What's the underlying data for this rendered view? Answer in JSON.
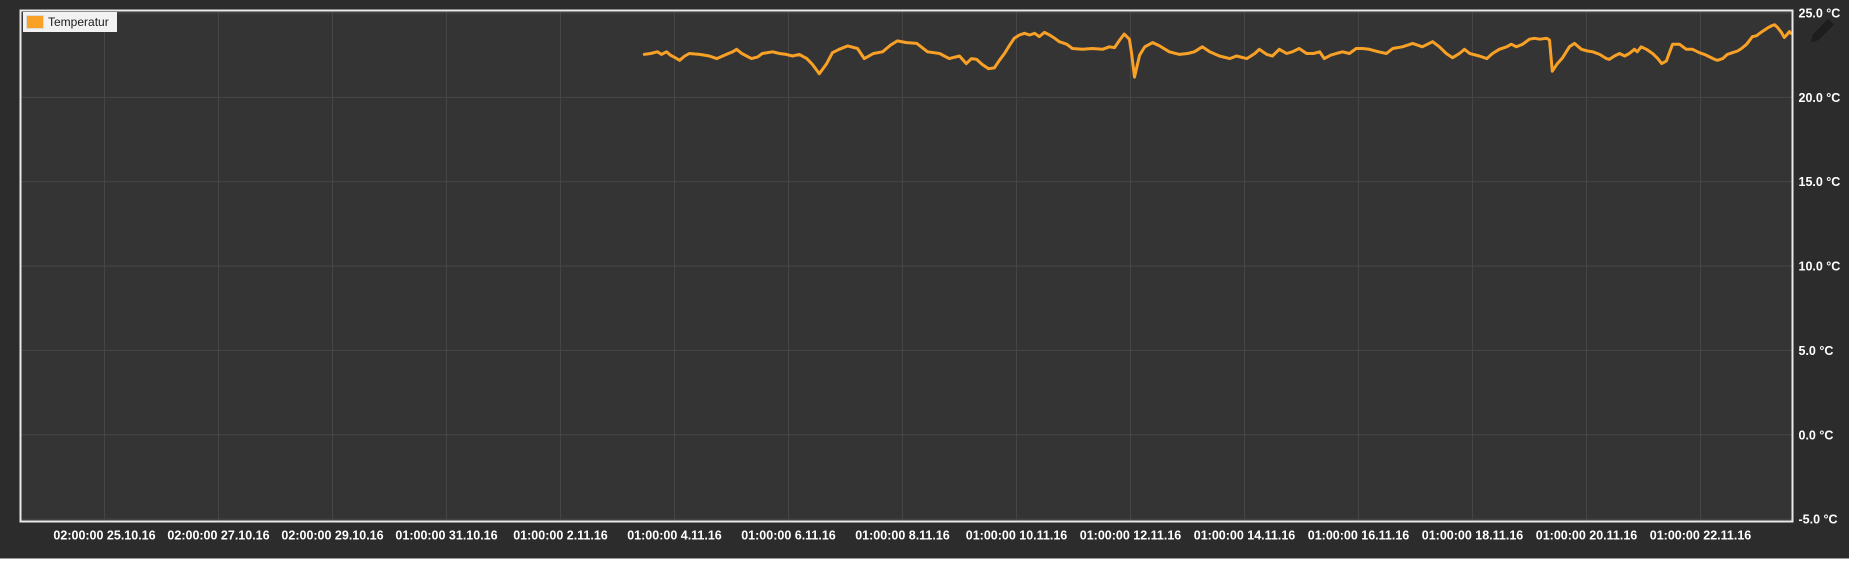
{
  "legend": {
    "label": "Temperatur",
    "swatch_color": "#F9A126"
  },
  "icons": {
    "edit_pencil": "pencil-edit"
  },
  "colors": {
    "outer_background": "#2C2C2C",
    "plot_background": "#343434",
    "gridline": "#474747",
    "plot_border": "#E9E9E9",
    "axis_label": "#FFFFFF",
    "series_line": "#F9A126",
    "legend_background": "#F2F2F2",
    "legend_text": "#1B1B1B",
    "pencil_icon": "#1D1D1D",
    "footer_background": "#FFFFFF"
  },
  "chart_data": {
    "type": "line",
    "title": "",
    "grid": true,
    "legend_position": "top-left",
    "x_axis": {
      "tick_days": [
        0,
        2,
        4,
        6,
        8,
        10,
        12,
        14,
        16,
        18,
        20,
        22,
        24,
        26,
        28
      ],
      "tick_labels": [
        "02:00:00 25.10.16",
        "02:00:00 27.10.16",
        "02:00:00 29.10.16",
        "01:00:00 31.10.16",
        "01:00:00 2.11.16",
        "01:00:00 4.11.16",
        "01:00:00 6.11.16",
        "01:00:00 8.11.16",
        "01:00:00 10.11.16",
        "01:00:00 12.11.16",
        "01:00:00 14.11.16",
        "01:00:00 16.11.16",
        "01:00:00 18.11.16",
        "01:00:00 20.11.16",
        "01:00:00 22.11.16"
      ],
      "range_days": [
        -1.474,
        29.614
      ]
    },
    "y_axis": {
      "side": "right",
      "unit": "°C",
      "ticks": [
        25,
        20,
        15,
        10,
        5,
        0,
        -5
      ],
      "tick_labels": [
        "25.0 °C",
        "20.0 °C",
        "15.0 °C",
        "10.0 °C",
        "5.0 °C",
        "0.0 °C",
        "-5.0 °C"
      ],
      "range": [
        -5.14,
        25.15
      ]
    },
    "series": [
      {
        "name": "Temperatur",
        "color": "#F9A126",
        "unit": "°C",
        "points": [
          [
            9.47,
            22.55
          ],
          [
            9.58,
            22.6
          ],
          [
            9.7,
            22.7
          ],
          [
            9.77,
            22.55
          ],
          [
            9.86,
            22.7
          ],
          [
            9.93,
            22.5
          ],
          [
            10.04,
            22.3
          ],
          [
            10.09,
            22.2
          ],
          [
            10.18,
            22.45
          ],
          [
            10.26,
            22.6
          ],
          [
            10.44,
            22.55
          ],
          [
            10.61,
            22.45
          ],
          [
            10.74,
            22.3
          ],
          [
            10.91,
            22.55
          ],
          [
            11.02,
            22.7
          ],
          [
            11.09,
            22.85
          ],
          [
            11.18,
            22.6
          ],
          [
            11.35,
            22.3
          ],
          [
            11.46,
            22.4
          ],
          [
            11.54,
            22.6
          ],
          [
            11.72,
            22.7
          ],
          [
            11.84,
            22.6
          ],
          [
            11.96,
            22.55
          ],
          [
            12.07,
            22.45
          ],
          [
            12.19,
            22.55
          ],
          [
            12.32,
            22.3
          ],
          [
            12.42,
            21.95
          ],
          [
            12.54,
            21.4
          ],
          [
            12.67,
            22.0
          ],
          [
            12.77,
            22.65
          ],
          [
            12.89,
            22.85
          ],
          [
            13.04,
            23.05
          ],
          [
            13.21,
            22.9
          ],
          [
            13.33,
            22.3
          ],
          [
            13.49,
            22.6
          ],
          [
            13.65,
            22.7
          ],
          [
            13.79,
            23.1
          ],
          [
            13.91,
            23.35
          ],
          [
            14.07,
            23.25
          ],
          [
            14.25,
            23.2
          ],
          [
            14.44,
            22.7
          ],
          [
            14.65,
            22.6
          ],
          [
            14.82,
            22.3
          ],
          [
            15.0,
            22.45
          ],
          [
            15.12,
            22.0
          ],
          [
            15.21,
            22.3
          ],
          [
            15.3,
            22.25
          ],
          [
            15.4,
            21.95
          ],
          [
            15.51,
            21.7
          ],
          [
            15.61,
            21.75
          ],
          [
            15.7,
            22.2
          ],
          [
            15.79,
            22.6
          ],
          [
            15.88,
            23.1
          ],
          [
            15.96,
            23.5
          ],
          [
            16.05,
            23.7
          ],
          [
            16.14,
            23.8
          ],
          [
            16.23,
            23.7
          ],
          [
            16.32,
            23.8
          ],
          [
            16.4,
            23.6
          ],
          [
            16.49,
            23.85
          ],
          [
            16.58,
            23.7
          ],
          [
            16.67,
            23.5
          ],
          [
            16.75,
            23.3
          ],
          [
            16.88,
            23.15
          ],
          [
            16.98,
            22.9
          ],
          [
            17.16,
            22.85
          ],
          [
            17.33,
            22.9
          ],
          [
            17.51,
            22.85
          ],
          [
            17.63,
            23.0
          ],
          [
            17.72,
            22.95
          ],
          [
            17.81,
            23.4
          ],
          [
            17.89,
            23.75
          ],
          [
            17.98,
            23.45
          ],
          [
            18.02,
            22.6
          ],
          [
            18.07,
            21.2
          ],
          [
            18.16,
            22.5
          ],
          [
            18.25,
            23.0
          ],
          [
            18.39,
            23.25
          ],
          [
            18.51,
            23.05
          ],
          [
            18.68,
            22.7
          ],
          [
            18.86,
            22.55
          ],
          [
            19.0,
            22.6
          ],
          [
            19.12,
            22.7
          ],
          [
            19.26,
            23.0
          ],
          [
            19.39,
            22.7
          ],
          [
            19.56,
            22.45
          ],
          [
            19.74,
            22.3
          ],
          [
            19.86,
            22.45
          ],
          [
            20.04,
            22.3
          ],
          [
            20.18,
            22.6
          ],
          [
            20.26,
            22.85
          ],
          [
            20.39,
            22.55
          ],
          [
            20.49,
            22.45
          ],
          [
            20.61,
            22.85
          ],
          [
            20.74,
            22.6
          ],
          [
            20.84,
            22.7
          ],
          [
            20.96,
            22.9
          ],
          [
            21.09,
            22.6
          ],
          [
            21.21,
            22.6
          ],
          [
            21.32,
            22.7
          ],
          [
            21.4,
            22.3
          ],
          [
            21.51,
            22.5
          ],
          [
            21.61,
            22.6
          ],
          [
            21.72,
            22.7
          ],
          [
            21.84,
            22.6
          ],
          [
            21.96,
            22.9
          ],
          [
            22.07,
            22.9
          ],
          [
            22.19,
            22.85
          ],
          [
            22.35,
            22.7
          ],
          [
            22.49,
            22.6
          ],
          [
            22.6,
            22.9
          ],
          [
            22.77,
            23.0
          ],
          [
            22.95,
            23.2
          ],
          [
            23.12,
            23.0
          ],
          [
            23.3,
            23.3
          ],
          [
            23.42,
            23.0
          ],
          [
            23.54,
            22.6
          ],
          [
            23.65,
            22.35
          ],
          [
            23.77,
            22.6
          ],
          [
            23.86,
            22.85
          ],
          [
            23.95,
            22.6
          ],
          [
            24.12,
            22.45
          ],
          [
            24.25,
            22.3
          ],
          [
            24.35,
            22.6
          ],
          [
            24.47,
            22.85
          ],
          [
            24.6,
            23.0
          ],
          [
            24.68,
            23.15
          ],
          [
            24.77,
            23.0
          ],
          [
            24.88,
            23.15
          ],
          [
            25.0,
            23.45
          ],
          [
            25.09,
            23.5
          ],
          [
            25.18,
            23.45
          ],
          [
            25.3,
            23.5
          ],
          [
            25.35,
            23.4
          ],
          [
            25.4,
            21.55
          ],
          [
            25.49,
            22.0
          ],
          [
            25.58,
            22.35
          ],
          [
            25.7,
            23.0
          ],
          [
            25.79,
            23.2
          ],
          [
            25.91,
            22.85
          ],
          [
            26.02,
            22.75
          ],
          [
            26.11,
            22.7
          ],
          [
            26.23,
            22.55
          ],
          [
            26.35,
            22.3
          ],
          [
            26.4,
            22.25
          ],
          [
            26.49,
            22.45
          ],
          [
            26.58,
            22.6
          ],
          [
            26.67,
            22.45
          ],
          [
            26.75,
            22.6
          ],
          [
            26.84,
            22.85
          ],
          [
            26.89,
            22.7
          ],
          [
            26.96,
            23.0
          ],
          [
            27.05,
            22.85
          ],
          [
            27.16,
            22.6
          ],
          [
            27.25,
            22.3
          ],
          [
            27.32,
            22.0
          ],
          [
            27.4,
            22.15
          ],
          [
            27.46,
            22.7
          ],
          [
            27.51,
            23.15
          ],
          [
            27.63,
            23.15
          ],
          [
            27.75,
            22.85
          ],
          [
            27.86,
            22.85
          ],
          [
            27.98,
            22.65
          ],
          [
            28.07,
            22.55
          ],
          [
            28.16,
            22.4
          ],
          [
            28.25,
            22.25
          ],
          [
            28.3,
            22.2
          ],
          [
            28.39,
            22.3
          ],
          [
            28.47,
            22.55
          ],
          [
            28.56,
            22.65
          ],
          [
            28.65,
            22.75
          ],
          [
            28.72,
            22.9
          ],
          [
            28.81,
            23.15
          ],
          [
            28.91,
            23.6
          ],
          [
            28.98,
            23.65
          ],
          [
            29.08,
            23.9
          ],
          [
            29.17,
            24.1
          ],
          [
            29.25,
            24.25
          ],
          [
            29.3,
            24.3
          ],
          [
            29.35,
            24.15
          ],
          [
            29.42,
            23.85
          ],
          [
            29.47,
            23.55
          ],
          [
            29.51,
            23.7
          ],
          [
            29.56,
            23.9
          ],
          [
            29.58,
            23.8
          ]
        ]
      }
    ]
  }
}
